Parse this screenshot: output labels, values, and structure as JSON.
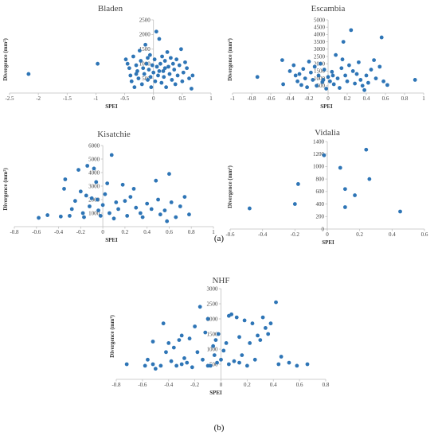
{
  "captions": {
    "a": "(a)",
    "b": "(b)"
  },
  "chart_data": [
    {
      "type": "scatter",
      "title": "Bladen",
      "xlabel": "SPEI",
      "ylabel": "Divergence (mm²)",
      "xlim": [
        -2.5,
        1
      ],
      "ylim": [
        0,
        2500
      ],
      "x_ticks": [
        -2.5,
        -2,
        -1.5,
        -1,
        -0.5,
        0,
        0.5,
        1
      ],
      "y_ticks": [
        500,
        1000,
        1500,
        2000,
        2500
      ],
      "y_axis_at_zero": true,
      "grid": false,
      "color": "#2e75b6",
      "points": [
        [
          -2.17,
          650
        ],
        [
          -0.97,
          1000
        ],
        [
          -0.48,
          1150
        ],
        [
          -0.45,
          1000
        ],
        [
          -0.42,
          850
        ],
        [
          -0.4,
          600
        ],
        [
          -0.38,
          400
        ],
        [
          -0.35,
          1250
        ],
        [
          -0.33,
          200
        ],
        [
          -0.3,
          950
        ],
        [
          -0.28,
          750
        ],
        [
          -0.26,
          500
        ],
        [
          -0.24,
          1450
        ],
        [
          -0.22,
          1100
        ],
        [
          -0.2,
          300
        ],
        [
          -0.18,
          850
        ],
        [
          -0.16,
          650
        ],
        [
          -0.14,
          1650
        ],
        [
          -0.12,
          1000
        ],
        [
          -0.1,
          450
        ],
        [
          -0.08,
          800
        ],
        [
          -0.06,
          1300
        ],
        [
          -0.05,
          550
        ],
        [
          -0.04,
          200
        ],
        [
          -0.02,
          950
        ],
        [
          0.0,
          700
        ],
        [
          0.02,
          1150
        ],
        [
          0.03,
          400
        ],
        [
          0.05,
          2100
        ],
        [
          0.06,
          900
        ],
        [
          0.08,
          600
        ],
        [
          0.1,
          1850
        ],
        [
          0.12,
          1000
        ],
        [
          0.14,
          350
        ],
        [
          0.15,
          1250
        ],
        [
          0.17,
          750
        ],
        [
          0.18,
          550
        ],
        [
          0.2,
          1100
        ],
        [
          0.22,
          200
        ],
        [
          0.24,
          1400
        ],
        [
          0.26,
          900
        ],
        [
          0.28,
          650
        ],
        [
          0.3,
          1200
        ],
        [
          0.32,
          450
        ],
        [
          0.34,
          1000
        ],
        [
          0.36,
          800
        ],
        [
          0.38,
          300
        ],
        [
          0.4,
          1150
        ],
        [
          0.42,
          600
        ],
        [
          0.45,
          950
        ],
        [
          0.48,
          1500
        ],
        [
          0.5,
          400
        ],
        [
          0.52,
          700
        ],
        [
          0.55,
          1050
        ],
        [
          0.58,
          850
        ],
        [
          0.62,
          500
        ],
        [
          0.66,
          150
        ],
        [
          0.68,
          600
        ],
        [
          -0.3,
          650
        ],
        [
          0.1,
          750
        ],
        [
          0.2,
          850
        ],
        [
          -0.1,
          1200
        ]
      ]
    },
    {
      "type": "scatter",
      "title": "Escambia",
      "xlabel": "SPEI",
      "ylabel": "Divergence (mm²)",
      "xlim": [
        -1,
        1
      ],
      "ylim": [
        0,
        5000
      ],
      "x_ticks": [
        -1,
        -0.8,
        -0.6,
        -0.4,
        -0.2,
        0,
        0.2,
        0.4,
        0.6,
        0.8,
        1
      ],
      "y_ticks": [
        500,
        1000,
        1500,
        2000,
        2500,
        3000,
        3500,
        4000,
        4500,
        5000
      ],
      "y_axis_at_zero": true,
      "grid": false,
      "color": "#2e75b6",
      "points": [
        [
          -0.74,
          1100
        ],
        [
          -0.48,
          2250
        ],
        [
          -0.47,
          600
        ],
        [
          -0.4,
          1500
        ],
        [
          -0.36,
          1900
        ],
        [
          -0.34,
          1200
        ],
        [
          -0.32,
          800
        ],
        [
          -0.3,
          1300
        ],
        [
          -0.28,
          550
        ],
        [
          -0.26,
          1650
        ],
        [
          -0.24,
          1000
        ],
        [
          -0.22,
          400
        ],
        [
          -0.2,
          2150
        ],
        [
          -0.18,
          1400
        ],
        [
          -0.16,
          900
        ],
        [
          -0.14,
          1800
        ],
        [
          -0.12,
          500
        ],
        [
          -0.1,
          1200
        ],
        [
          -0.08,
          2000
        ],
        [
          -0.06,
          750
        ],
        [
          -0.04,
          1600
        ],
        [
          -0.02,
          300
        ],
        [
          0.0,
          1100
        ],
        [
          0.02,
          800
        ],
        [
          0.04,
          1450
        ],
        [
          0.06,
          600
        ],
        [
          0.08,
          2600
        ],
        [
          0.1,
          1000
        ],
        [
          0.12,
          350
        ],
        [
          0.14,
          1700
        ],
        [
          0.15,
          2300
        ],
        [
          0.16,
          3500
        ],
        [
          0.18,
          1200
        ],
        [
          0.2,
          800
        ],
        [
          0.22,
          1900
        ],
        [
          0.24,
          4300
        ],
        [
          0.26,
          1500
        ],
        [
          0.28,
          650
        ],
        [
          0.3,
          1300
        ],
        [
          0.32,
          2100
        ],
        [
          0.34,
          900
        ],
        [
          0.36,
          500
        ],
        [
          0.38,
          200
        ],
        [
          0.4,
          1200
        ],
        [
          0.42,
          700
        ],
        [
          0.45,
          1600
        ],
        [
          0.48,
          2250
        ],
        [
          0.5,
          1000
        ],
        [
          0.54,
          1800
        ],
        [
          0.56,
          3800
        ],
        [
          0.58,
          800
        ],
        [
          0.62,
          550
        ],
        [
          0.91,
          900
        ],
        [
          0.05,
          1200
        ],
        [
          -0.05,
          900
        ]
      ]
    },
    {
      "type": "scatter",
      "title": "Kisatchie",
      "xlabel": "SPEI",
      "ylabel": "Divergence (mm²)",
      "xlim": [
        -0.8,
        1
      ],
      "ylim": [
        0,
        6000
      ],
      "x_ticks": [
        -0.8,
        -0.6,
        -0.4,
        -0.2,
        0,
        0.2,
        0.4,
        0.6,
        0.8,
        1
      ],
      "y_ticks": [
        1000,
        2000,
        3000,
        4000,
        5000,
        6000
      ],
      "y_axis_at_zero": true,
      "grid": false,
      "color": "#2e75b6",
      "points": [
        [
          -0.58,
          650
        ],
        [
          -0.5,
          850
        ],
        [
          -0.38,
          750
        ],
        [
          -0.35,
          2800
        ],
        [
          -0.34,
          3500
        ],
        [
          -0.3,
          800
        ],
        [
          -0.25,
          1900
        ],
        [
          -0.22,
          4200
        ],
        [
          -0.2,
          2600
        ],
        [
          -0.18,
          1000
        ],
        [
          -0.17,
          700
        ],
        [
          -0.15,
          2300
        ],
        [
          -0.14,
          4500
        ],
        [
          -0.12,
          1500
        ],
        [
          -0.1,
          2100
        ],
        [
          -0.08,
          4300
        ],
        [
          -0.06,
          3300
        ],
        [
          -0.05,
          2000
        ],
        [
          -0.04,
          1200
        ],
        [
          -0.02,
          800
        ],
        [
          0.0,
          1600
        ],
        [
          0.02,
          2400
        ],
        [
          0.04,
          3200
        ],
        [
          0.06,
          1000
        ],
        [
          0.08,
          5300
        ],
        [
          0.1,
          600
        ],
        [
          0.12,
          1800
        ],
        [
          0.14,
          1300
        ],
        [
          0.18,
          3100
        ],
        [
          0.2,
          1900
        ],
        [
          0.22,
          800
        ],
        [
          0.25,
          2200
        ],
        [
          0.28,
          2800
        ],
        [
          0.3,
          1400
        ],
        [
          0.34,
          1000
        ],
        [
          0.36,
          700
        ],
        [
          0.4,
          1700
        ],
        [
          0.44,
          1300
        ],
        [
          0.48,
          3400
        ],
        [
          0.5,
          2000
        ],
        [
          0.52,
          900
        ],
        [
          0.56,
          1200
        ],
        [
          0.6,
          3900
        ],
        [
          0.62,
          1800
        ],
        [
          0.66,
          700
        ],
        [
          0.7,
          1500
        ],
        [
          0.74,
          2200
        ],
        [
          0.78,
          900
        ],
        [
          0.58,
          400
        ],
        [
          -0.28,
          1300
        ]
      ]
    },
    {
      "type": "scatter",
      "title": "Vidalia",
      "xlabel": "SPEI",
      "ylabel": "Divergence (mm²)",
      "xlim": [
        -0.6,
        0.6
      ],
      "ylim": [
        0,
        1400
      ],
      "x_ticks": [
        -0.6,
        -0.4,
        -0.2,
        0,
        0.2,
        0.4,
        0.6
      ],
      "y_ticks": [
        0,
        200,
        400,
        600,
        800,
        1000,
        1200,
        1400
      ],
      "y_axis_at_zero": true,
      "grid": false,
      "color": "#2e75b6",
      "points": [
        [
          -0.48,
          330
        ],
        [
          -0.2,
          400
        ],
        [
          -0.18,
          720
        ],
        [
          -0.02,
          1180
        ],
        [
          0.08,
          980
        ],
        [
          0.11,
          640
        ],
        [
          0.11,
          350
        ],
        [
          0.17,
          540
        ],
        [
          0.24,
          1270
        ],
        [
          0.26,
          800
        ],
        [
          0.45,
          280
        ]
      ]
    },
    {
      "type": "scatter",
      "title": "NHF",
      "xlabel": "SPEI",
      "ylabel": "Divergence (mm²)",
      "xlim": [
        -0.8,
        0.8
      ],
      "ylim": [
        0,
        3000
      ],
      "x_ticks": [
        -0.8,
        -0.6,
        -0.4,
        -0.2,
        0,
        0.2,
        0.4,
        0.6,
        0.8
      ],
      "y_ticks": [
        500,
        1000,
        1500,
        2000,
        2500,
        3000
      ],
      "y_axis_at_zero": true,
      "grid": false,
      "color": "#2e75b6",
      "points": [
        [
          -0.72,
          500
        ],
        [
          -0.58,
          450
        ],
        [
          -0.56,
          650
        ],
        [
          -0.52,
          1250
        ],
        [
          -0.5,
          350
        ],
        [
          -0.46,
          450
        ],
        [
          -0.44,
          1850
        ],
        [
          -0.42,
          900
        ],
        [
          -0.4,
          1200
        ],
        [
          -0.38,
          600
        ],
        [
          -0.36,
          1050
        ],
        [
          -0.34,
          450
        ],
        [
          -0.32,
          1300
        ],
        [
          -0.3,
          1450
        ],
        [
          -0.28,
          700
        ],
        [
          -0.26,
          550
        ],
        [
          -0.24,
          1350
        ],
        [
          -0.22,
          400
        ],
        [
          -0.2,
          1750
        ],
        [
          -0.18,
          900
        ],
        [
          -0.16,
          2400
        ],
        [
          -0.14,
          650
        ],
        [
          -0.12,
          1550
        ],
        [
          -0.1,
          2000
        ],
        [
          -0.08,
          450
        ],
        [
          -0.06,
          1100
        ],
        [
          -0.05,
          800
        ],
        [
          -0.04,
          1300
        ],
        [
          -0.03,
          550
        ],
        [
          -0.02,
          1500
        ],
        [
          0.0,
          650
        ],
        [
          0.02,
          950
        ],
        [
          0.04,
          1200
        ],
        [
          0.06,
          2100
        ],
        [
          0.08,
          2150
        ],
        [
          0.1,
          600
        ],
        [
          0.12,
          2050
        ],
        [
          0.14,
          1400
        ],
        [
          0.16,
          800
        ],
        [
          0.18,
          1950
        ],
        [
          0.2,
          450
        ],
        [
          0.22,
          1200
        ],
        [
          0.24,
          1850
        ],
        [
          0.26,
          650
        ],
        [
          0.28,
          1450
        ],
        [
          0.3,
          1300
        ],
        [
          0.32,
          2050
        ],
        [
          0.34,
          1700
        ],
        [
          0.36,
          1500
        ],
        [
          0.38,
          1850
        ],
        [
          0.42,
          2550
        ],
        [
          0.44,
          500
        ],
        [
          0.46,
          750
        ],
        [
          0.52,
          550
        ],
        [
          0.58,
          450
        ],
        [
          0.66,
          500
        ],
        [
          -0.52,
          500
        ],
        [
          -0.3,
          500
        ],
        [
          -0.1,
          450
        ],
        [
          0.06,
          500
        ],
        [
          0.14,
          550
        ]
      ]
    }
  ]
}
